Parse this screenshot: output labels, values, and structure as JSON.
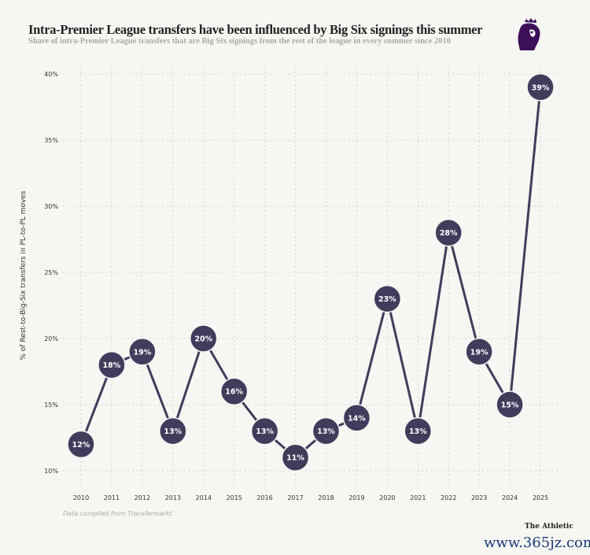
{
  "chart_data": {
    "type": "line",
    "title": "Intra-Premier League transfers have been influenced by Big Six signings this summer",
    "subtitle": "Share of intra-Premier League transfers that are Big Six signings from the rest of the league in every summer since 2010",
    "xlabel": "",
    "ylabel": "% of Rest-to-Big-Six transfers in PL-to-PL moves",
    "x": [
      "2010",
      "2011",
      "2012",
      "2013",
      "2014",
      "2015",
      "2016",
      "2017",
      "2018",
      "2019",
      "2020",
      "2021",
      "2022",
      "2023",
      "2024",
      "2025"
    ],
    "values": [
      12,
      18,
      19,
      13,
      20,
      16,
      13,
      11,
      13,
      14,
      23,
      13,
      28,
      19,
      15,
      39
    ],
    "data_labels": [
      "12%",
      "18%",
      "19%",
      "13%",
      "20%",
      "16%",
      "13%",
      "11%",
      "13%",
      "14%",
      "23%",
      "13%",
      "28%",
      "19%",
      "15%",
      "39%"
    ],
    "yticks": [
      10,
      15,
      20,
      25,
      30,
      35,
      40
    ],
    "ytick_labels": [
      "10%",
      "15%",
      "20%",
      "25%",
      "30%",
      "35%",
      "40%"
    ],
    "ylim": [
      10,
      40
    ],
    "grid": true,
    "color": "#433b5c"
  },
  "source": "Data compiled from Transfermarkt",
  "brand": "The Athletic",
  "watermark": "www.365jz.com"
}
